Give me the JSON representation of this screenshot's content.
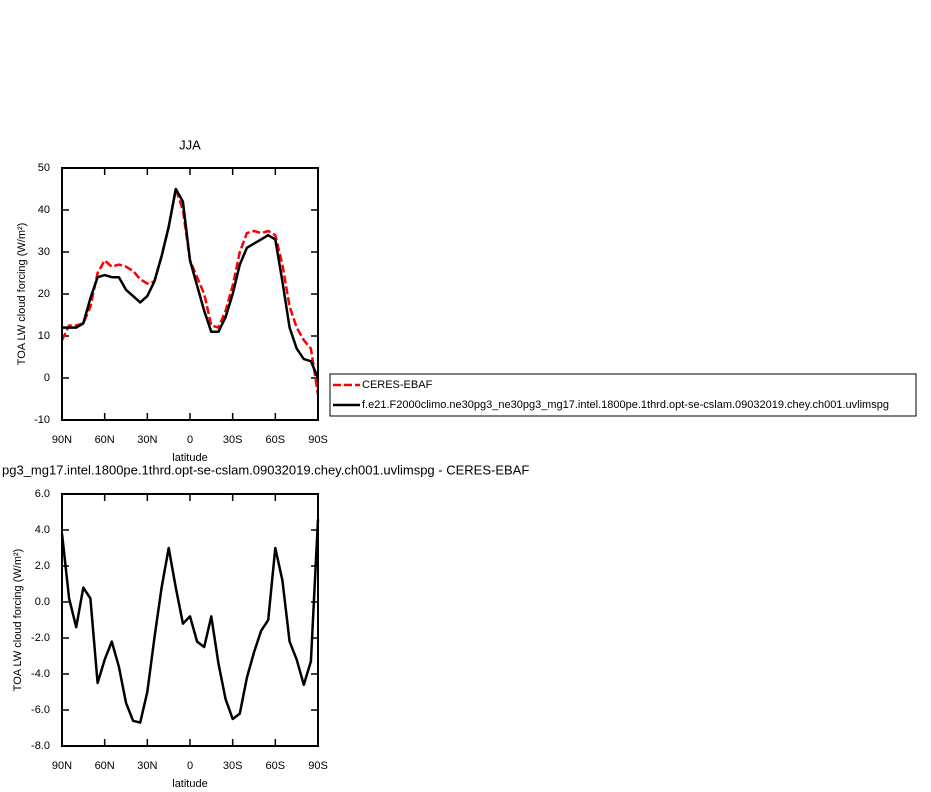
{
  "chart_data": [
    {
      "type": "line",
      "title": "JJA",
      "xlabel": "latitude",
      "ylabel": "TOA LW cloud forcing (W/m²)",
      "x": [
        90,
        85,
        80,
        75,
        70,
        65,
        60,
        55,
        50,
        45,
        40,
        35,
        30,
        25,
        20,
        15,
        10,
        5,
        0,
        -5,
        -10,
        -15,
        -20,
        -25,
        -30,
        -35,
        -40,
        -45,
        -50,
        -55,
        -60,
        -65,
        -70,
        -75,
        -80,
        -85,
        -90
      ],
      "series": [
        {
          "name": "CERES-EBAF",
          "color": "#ff0000",
          "dashed": true,
          "values": [
            9,
            12.5,
            12.5,
            13,
            17,
            25,
            28,
            26.5,
            27,
            26.5,
            25.5,
            23.5,
            22.5,
            23,
            29,
            36,
            45,
            40,
            28,
            24,
            20,
            12.5,
            12,
            16,
            22,
            30,
            34.5,
            35,
            34.5,
            35,
            34,
            27,
            17,
            12,
            9,
            7,
            -4
          ]
        },
        {
          "name": "f.e21.F2000climo.ne30pg3_ne30pg3_mg17.intel.1800pe.1thrd.opt-se-cslam.09032019.chey.ch001.uvlimspg",
          "color": "#000000",
          "dashed": false,
          "values": [
            12,
            12,
            12,
            13,
            19,
            24,
            24.5,
            24,
            24,
            21,
            19.5,
            18,
            19.5,
            23,
            29,
            36,
            45,
            42,
            28,
            22,
            16,
            11,
            11,
            14.5,
            20,
            27,
            31,
            32,
            33,
            34,
            33,
            23,
            12,
            7,
            4.5,
            4,
            0
          ]
        }
      ],
      "xlim": [
        90,
        -90
      ],
      "xticks": [
        {
          "value": 90,
          "label": "90N"
        },
        {
          "value": 60,
          "label": "60N"
        },
        {
          "value": 30,
          "label": "30N"
        },
        {
          "value": 0,
          "label": "0"
        },
        {
          "value": -30,
          "label": "30S"
        },
        {
          "value": -60,
          "label": "60S"
        },
        {
          "value": -90,
          "label": "90S"
        }
      ],
      "ylim": [
        -10,
        50
      ],
      "yticks": [
        -10,
        0,
        10,
        20,
        30,
        40,
        50
      ],
      "legend": "right"
    },
    {
      "type": "line",
      "title": "pg3_mg17.intel.1800pe.1thrd.opt-se-cslam.09032019.chey.ch001.uvlimspg - CERES-EBAF",
      "xlabel": "latitude",
      "ylabel": "TOA LW cloud forcing (W/m²)",
      "x": [
        90,
        85,
        80,
        75,
        70,
        65,
        60,
        55,
        50,
        45,
        40,
        35,
        30,
        25,
        20,
        15,
        10,
        5,
        0,
        -5,
        -10,
        -15,
        -20,
        -25,
        -30,
        -35,
        -40,
        -45,
        -50,
        -55,
        -60,
        -65,
        -70,
        -75,
        -80,
        -85,
        -90
      ],
      "color": "#000000",
      "values": [
        3.8,
        0.2,
        -1.4,
        0.8,
        0.2,
        -4.5,
        -3.2,
        -2.2,
        -3.6,
        -5.6,
        -6.6,
        -6.7,
        -5,
        -2,
        0.8,
        3,
        0.8,
        -1.2,
        -0.8,
        -2.2,
        -2.5,
        -0.8,
        -3.4,
        -5.4,
        -6.5,
        -6.2,
        -4.2,
        -2.8,
        -1.6,
        -1,
        3,
        1.2,
        -2.2,
        -3.2,
        -4.6,
        -3.3,
        4.6
      ],
      "xlim": [
        90,
        -90
      ],
      "xticks": [
        {
          "value": 90,
          "label": "90N"
        },
        {
          "value": 60,
          "label": "60N"
        },
        {
          "value": 30,
          "label": "30N"
        },
        {
          "value": 0,
          "label": "0"
        },
        {
          "value": -30,
          "label": "30S"
        },
        {
          "value": -60,
          "label": "60S"
        },
        {
          "value": -90,
          "label": "90S"
        }
      ],
      "ylim": [
        -8,
        6
      ],
      "yticks": [
        {
          "value": -8,
          "label": "-8.0"
        },
        {
          "value": -6,
          "label": "-6.0"
        },
        {
          "value": -4,
          "label": "-4.0"
        },
        {
          "value": -2,
          "label": "-2.0"
        },
        {
          "value": 0,
          "label": "0.0"
        },
        {
          "value": 2,
          "label": "2.0"
        },
        {
          "value": 4,
          "label": "4.0"
        },
        {
          "value": 6,
          "label": "6.0"
        }
      ]
    }
  ]
}
